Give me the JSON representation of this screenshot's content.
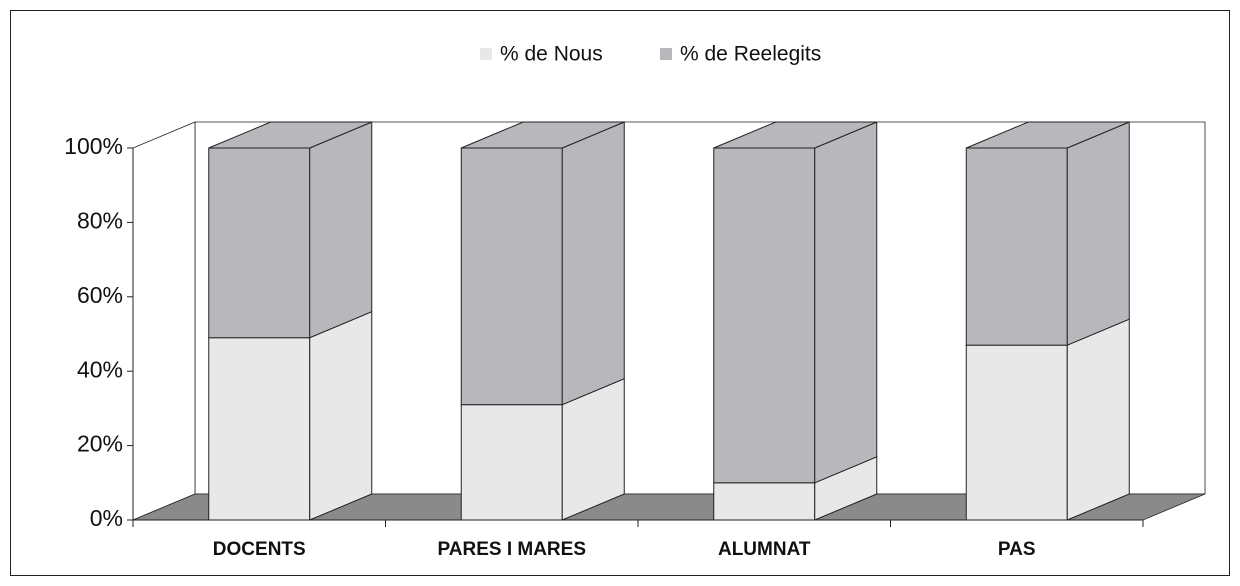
{
  "chart_data": {
    "type": "bar3d_stacked",
    "categories": [
      "DOCENTS",
      "PARES I MARES",
      "ALUMNAT",
      "PAS"
    ],
    "series": [
      {
        "name": "% de Nous",
        "color": "#e8e8e8",
        "values": [
          49,
          31,
          10,
          47
        ]
      },
      {
        "name": "% de Reelegits",
        "color": "#b8b8bc",
        "values": [
          51,
          69,
          90,
          53
        ]
      }
    ],
    "ylim": [
      0,
      100
    ],
    "yticks": [
      {
        "value": 0,
        "label": "0%"
      },
      {
        "value": 20,
        "label": "20%"
      },
      {
        "value": 40,
        "label": "40%"
      },
      {
        "value": 60,
        "label": "60%"
      },
      {
        "value": 80,
        "label": "80%"
      },
      {
        "value": 100,
        "label": "100%"
      }
    ],
    "legend": "top",
    "grid": false
  }
}
